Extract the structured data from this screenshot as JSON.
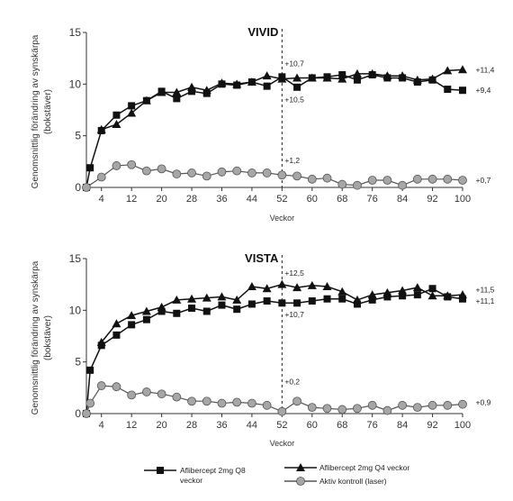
{
  "chart_data": [
    {
      "type": "line",
      "title": "VIVID",
      "xlabel": "Veckor",
      "ylabel_lines": [
        "Genomsnittlig förändring av synskärpa",
        "(bokstäver)"
      ],
      "xticks": [
        "4",
        "12",
        "20",
        "28",
        "36",
        "44",
        "52",
        "60",
        "68",
        "76",
        "84",
        "92",
        "100"
      ],
      "yticks": [
        "0",
        "5",
        "10",
        "15"
      ],
      "xlim": [
        0,
        100
      ],
      "ylim": [
        0,
        15
      ],
      "reference_week": 52,
      "series": [
        {
          "name": "Aflibercept 2mg Q8 veckor",
          "marker": "square",
          "x": [
            0,
            1,
            4,
            8,
            12,
            16,
            20,
            24,
            28,
            32,
            36,
            40,
            44,
            48,
            52,
            56,
            60,
            64,
            68,
            72,
            76,
            80,
            84,
            88,
            92,
            96,
            100
          ],
          "y": [
            0,
            1.9,
            5.5,
            7.0,
            7.9,
            8.4,
            9.3,
            8.6,
            9.3,
            9.1,
            10.0,
            9.9,
            10.2,
            9.8,
            10.7,
            9.7,
            10.6,
            10.7,
            10.9,
            10.4,
            10.9,
            10.6,
            10.6,
            10.2,
            10.4,
            9.5,
            9.4
          ]
        },
        {
          "name": "Aflibercept 2mg Q4 veckor",
          "marker": "triangle",
          "x": [
            4,
            8,
            12,
            16,
            20,
            24,
            28,
            32,
            36,
            40,
            44,
            48,
            52,
            56,
            60,
            64,
            68,
            72,
            76,
            80,
            84,
            88,
            92,
            96,
            100
          ],
          "y": [
            5.6,
            6.1,
            7.2,
            8.4,
            9.2,
            9.2,
            9.7,
            9.4,
            10.1,
            10.0,
            10.2,
            10.8,
            10.5,
            10.6,
            10.6,
            10.6,
            10.5,
            11.0,
            11.0,
            10.8,
            10.8,
            10.4,
            10.5,
            11.3,
            11.4
          ]
        },
        {
          "name": "Aktiv kontroll (laser)",
          "marker": "circle",
          "x": [
            0,
            4,
            8,
            12,
            16,
            20,
            24,
            28,
            32,
            36,
            40,
            44,
            48,
            52,
            56,
            60,
            64,
            68,
            72,
            76,
            80,
            84,
            88,
            92,
            96,
            100
          ],
          "y": [
            0,
            1.0,
            2.1,
            2.2,
            1.6,
            1.8,
            1.3,
            1.4,
            1.1,
            1.5,
            1.6,
            1.4,
            1.4,
            1.2,
            1.1,
            0.8,
            0.9,
            0.3,
            0.2,
            0.7,
            0.7,
            0.2,
            0.8,
            0.8,
            0.8,
            0.7
          ]
        }
      ],
      "annotations": [
        {
          "text": "+10,7",
          "x": 52,
          "y": 12.0
        },
        {
          "text": "+10,5",
          "x": 52,
          "y": 8.5
        },
        {
          "text": "+1,2",
          "x": 52,
          "y": 2.6
        },
        {
          "text": "+11,4",
          "x": 103,
          "y": 11.4
        },
        {
          "text": "+9,4",
          "x": 103,
          "y": 9.4
        },
        {
          "text": "+0,7",
          "x": 103,
          "y": 0.7
        }
      ]
    },
    {
      "type": "line",
      "title": "VISTA",
      "xlabel": "Veckor",
      "ylabel_lines": [
        "Genomsnittlig förändring av synskärpa",
        "(bokstäver)"
      ],
      "xticks": [
        "4",
        "12",
        "20",
        "28",
        "36",
        "44",
        "52",
        "60",
        "68",
        "76",
        "84",
        "92",
        "100"
      ],
      "yticks": [
        "0",
        "5",
        "10",
        "15"
      ],
      "xlim": [
        0,
        100
      ],
      "ylim": [
        0,
        15
      ],
      "reference_week": 52,
      "series": [
        {
          "name": "Aflibercept 2mg Q8 veckor",
          "marker": "square",
          "x": [
            0,
            1,
            4,
            8,
            12,
            16,
            20,
            24,
            28,
            32,
            36,
            40,
            44,
            48,
            52,
            56,
            60,
            64,
            68,
            72,
            76,
            80,
            84,
            88,
            92,
            96,
            100
          ],
          "y": [
            0,
            4.2,
            6.6,
            7.6,
            8.6,
            9.1,
            9.9,
            9.7,
            10.2,
            9.9,
            10.5,
            10.1,
            10.6,
            10.9,
            10.7,
            10.7,
            10.9,
            11.1,
            11.1,
            10.6,
            11.0,
            11.3,
            11.4,
            11.5,
            12.1,
            11.3,
            11.1
          ]
        },
        {
          "name": "Aflibercept 2mg Q4 veckor",
          "marker": "triangle",
          "x": [
            4,
            8,
            12,
            16,
            20,
            24,
            28,
            32,
            36,
            40,
            44,
            48,
            52,
            56,
            60,
            64,
            68,
            72,
            76,
            80,
            84,
            88,
            92,
            96,
            100
          ],
          "y": [
            6.9,
            8.7,
            9.5,
            9.9,
            10.3,
            11.0,
            11.1,
            11.2,
            11.3,
            11.0,
            12.3,
            12.1,
            12.5,
            12.2,
            12.4,
            12.3,
            11.8,
            11.0,
            11.5,
            11.7,
            11.9,
            12.2,
            11.4,
            11.4,
            11.5
          ]
        },
        {
          "name": "Aktiv kontroll (laser)",
          "marker": "circle",
          "x": [
            0,
            1,
            4,
            8,
            12,
            16,
            20,
            24,
            28,
            32,
            36,
            40,
            44,
            48,
            52,
            56,
            60,
            64,
            68,
            72,
            76,
            80,
            84,
            88,
            92,
            96,
            100
          ],
          "y": [
            0,
            1.0,
            2.7,
            2.6,
            1.8,
            2.1,
            1.9,
            1.6,
            1.2,
            1.2,
            1.0,
            1.1,
            1.0,
            0.8,
            0.2,
            1.2,
            0.6,
            0.5,
            0.4,
            0.5,
            0.8,
            0.3,
            0.8,
            0.6,
            0.8,
            0.8,
            0.9
          ]
        }
      ],
      "annotations": [
        {
          "text": "+12,5",
          "x": 52,
          "y": 13.6
        },
        {
          "text": "+10,7",
          "x": 52,
          "y": 9.6
        },
        {
          "text": "+0,2",
          "x": 52,
          "y": 3.1
        },
        {
          "text": "+11,5",
          "x": 103,
          "y": 12.0
        },
        {
          "text": "+11,1",
          "x": 103,
          "y": 10.9
        },
        {
          "text": "+0,9",
          "x": 103,
          "y": 1.1
        }
      ]
    }
  ],
  "legend": [
    {
      "label_lines": [
        "Aflibercept 2mg Q8",
        "veckor"
      ],
      "marker": "square"
    },
    {
      "label_lines": [
        "Aflibercept 2mg Q4 veckor"
      ],
      "marker": "triangle"
    },
    {
      "label_lines": [
        "Aktiv kontroll (laser)"
      ],
      "marker": "circle"
    }
  ],
  "colors": {
    "line": "#111111",
    "control_line": "#555555",
    "control_fill": "#a6a6a6",
    "axis": "#333333",
    "text": "#222222"
  }
}
